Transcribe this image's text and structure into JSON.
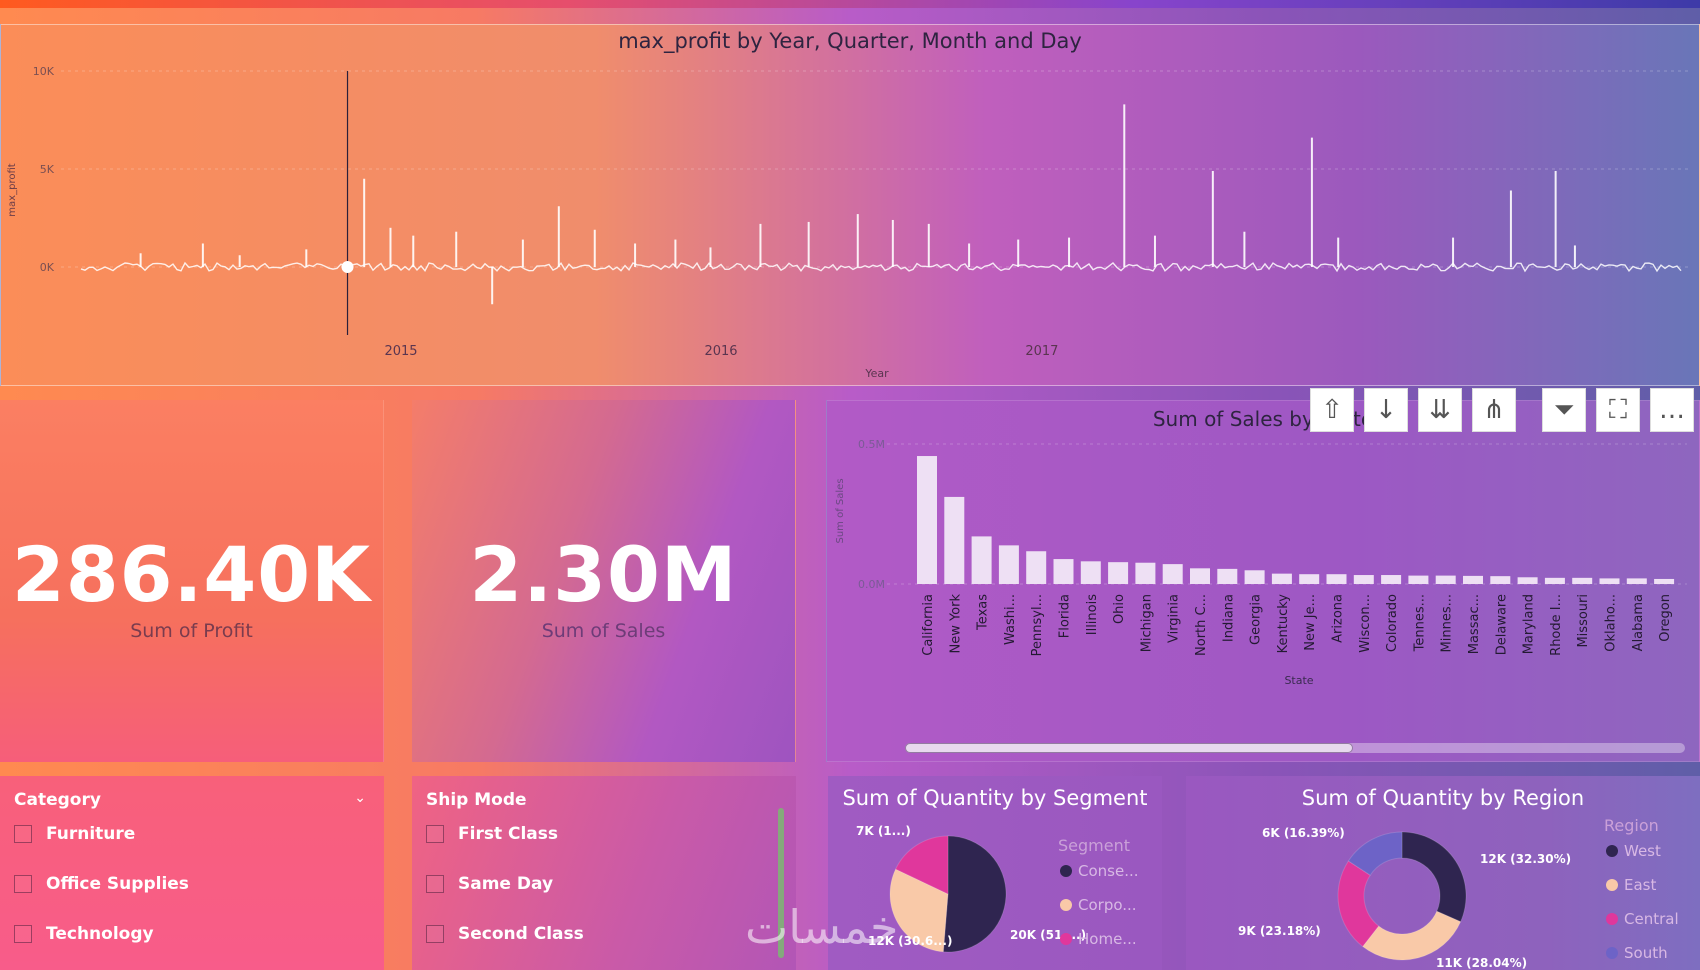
{
  "line_chart": {
    "title": "max_profit by Year, Quarter, Month and Day",
    "xlabel": "Year",
    "ylabel": "max_profit",
    "y_ticks": [
      "10K",
      "5K",
      "0K"
    ],
    "x_ticks": [
      "2015",
      "2016",
      "2017"
    ],
    "chart_data": {
      "type": "line",
      "xlabel": "Year",
      "ylabel": "max_profit",
      "ylim": [
        -2000,
        10000
      ],
      "y_ticks": [
        0,
        5000,
        10000
      ],
      "x_ticks": [
        "2015",
        "2016",
        "2017"
      ],
      "spikes": [
        {
          "x": "2014-03-10",
          "y": 700
        },
        {
          "x": "2014-05-20",
          "y": 1200
        },
        {
          "x": "2014-07-01",
          "y": 600
        },
        {
          "x": "2014-09-15",
          "y": 900
        },
        {
          "x": "2014-11-20",
          "y": 4500
        },
        {
          "x": "2014-12-20",
          "y": 2000
        },
        {
          "x": "2015-01-15",
          "y": 1600
        },
        {
          "x": "2015-03-05",
          "y": 1800
        },
        {
          "x": "2015-04-15",
          "y": -1900
        },
        {
          "x": "2015-05-20",
          "y": 1400
        },
        {
          "x": "2015-06-30",
          "y": 3100
        },
        {
          "x": "2015-08-10",
          "y": 1900
        },
        {
          "x": "2015-09-25",
          "y": 1200
        },
        {
          "x": "2015-11-10",
          "y": 1400
        },
        {
          "x": "2015-12-20",
          "y": 1000
        },
        {
          "x": "2016-02-15",
          "y": 2200
        },
        {
          "x": "2016-04-10",
          "y": 2300
        },
        {
          "x": "2016-06-05",
          "y": 2700
        },
        {
          "x": "2016-07-15",
          "y": 2400
        },
        {
          "x": "2016-08-25",
          "y": 2200
        },
        {
          "x": "2016-10-10",
          "y": 1200
        },
        {
          "x": "2016-12-05",
          "y": 1400
        },
        {
          "x": "2017-02-01",
          "y": 1500
        },
        {
          "x": "2017-04-05",
          "y": 8300
        },
        {
          "x": "2017-05-10",
          "y": 1600
        },
        {
          "x": "2017-07-15",
          "y": 4900
        },
        {
          "x": "2017-08-20",
          "y": 1800
        },
        {
          "x": "2017-11-05",
          "y": 6600
        },
        {
          "x": "2017-12-05",
          "y": 1500
        },
        {
          "x": "2018-04-15",
          "y": 1500
        },
        {
          "x": "2018-06-20",
          "y": 3900
        },
        {
          "x": "2018-08-10",
          "y": 4900
        },
        {
          "x": "2018-09-01",
          "y": 1100
        }
      ]
    }
  },
  "kpis": {
    "profit": {
      "value": "286.40K",
      "label": "Sum of Profit"
    },
    "sales": {
      "value": "2.30M",
      "label": "Sum of Sales"
    }
  },
  "bar_chart": {
    "title": "Sum of Sales by State",
    "xlabel": "State",
    "ylabel": "Sum of Sales",
    "y_ticks": [
      "0.5M",
      "0.0M"
    ],
    "chart_data": {
      "type": "bar",
      "xlabel": "State",
      "ylabel": "Sum of Sales",
      "ylim": [
        0,
        0.5
      ],
      "categories": [
        "California",
        "New York",
        "Texas",
        "Washi...",
        "Pennsyl...",
        "Florida",
        "Illinois",
        "Ohio",
        "Michigan",
        "Virginia",
        "North C...",
        "Indiana",
        "Georgia",
        "Kentucky",
        "New Je...",
        "Arizona",
        "Wiscon...",
        "Colorado",
        "Tennes...",
        "Minnes...",
        "Massac...",
        "Delaware",
        "Maryland",
        "Rhode I...",
        "Missouri",
        "Oklaho...",
        "Alabama",
        "Oregon"
      ],
      "values": [
        0.457,
        0.311,
        0.17,
        0.138,
        0.117,
        0.089,
        0.081,
        0.078,
        0.076,
        0.071,
        0.056,
        0.054,
        0.049,
        0.037,
        0.035,
        0.035,
        0.032,
        0.032,
        0.03,
        0.03,
        0.029,
        0.028,
        0.024,
        0.022,
        0.022,
        0.02,
        0.02,
        0.018
      ]
    }
  },
  "toolbar": {
    "icons": [
      "drill-up-icon",
      "drill-down-icon",
      "expand-next-level-icon",
      "expand-hierarchy-icon",
      "filter-icon",
      "focus-mode-icon",
      "more-options-icon"
    ],
    "glyphs": [
      "⇧",
      "↓",
      "⇊",
      "⋔",
      "⏷",
      "⛶",
      "…"
    ]
  },
  "slicers": {
    "category": {
      "title": "Category",
      "items": [
        "Furniture",
        "Office Supplies",
        "Technology"
      ]
    },
    "ship_mode": {
      "title": "Ship Mode",
      "items": [
        "First Class",
        "Same Day",
        "Second Class"
      ]
    }
  },
  "segment_donut": {
    "title": "Sum of Quantity by Segment",
    "legend_title": "Segment",
    "chart_data": {
      "type": "pie",
      "categories": [
        "Conse...",
        "Corpo...",
        "Home..."
      ],
      "values": [
        20,
        12,
        7
      ],
      "labels": [
        "20K (51....)",
        "12K (30.6...)",
        "7K (1...)"
      ],
      "colors": [
        "#2f2550",
        "#f9c9a8",
        "#e0379c"
      ]
    }
  },
  "region_donut": {
    "title": "Sum of Quantity by Region",
    "legend_title": "Region",
    "chart_data": {
      "type": "pie",
      "categories": [
        "West",
        "East",
        "Central",
        "South"
      ],
      "values": [
        12,
        11,
        9,
        6
      ],
      "labels": [
        "12K (32.30%)",
        "11K (28.04%)",
        "9K (23.18%)",
        "6K (16.39%)"
      ],
      "colors": [
        "#2f2550",
        "#f9c9a8",
        "#e0379c",
        "#6d63c7"
      ]
    }
  },
  "watermark": "خمسات"
}
